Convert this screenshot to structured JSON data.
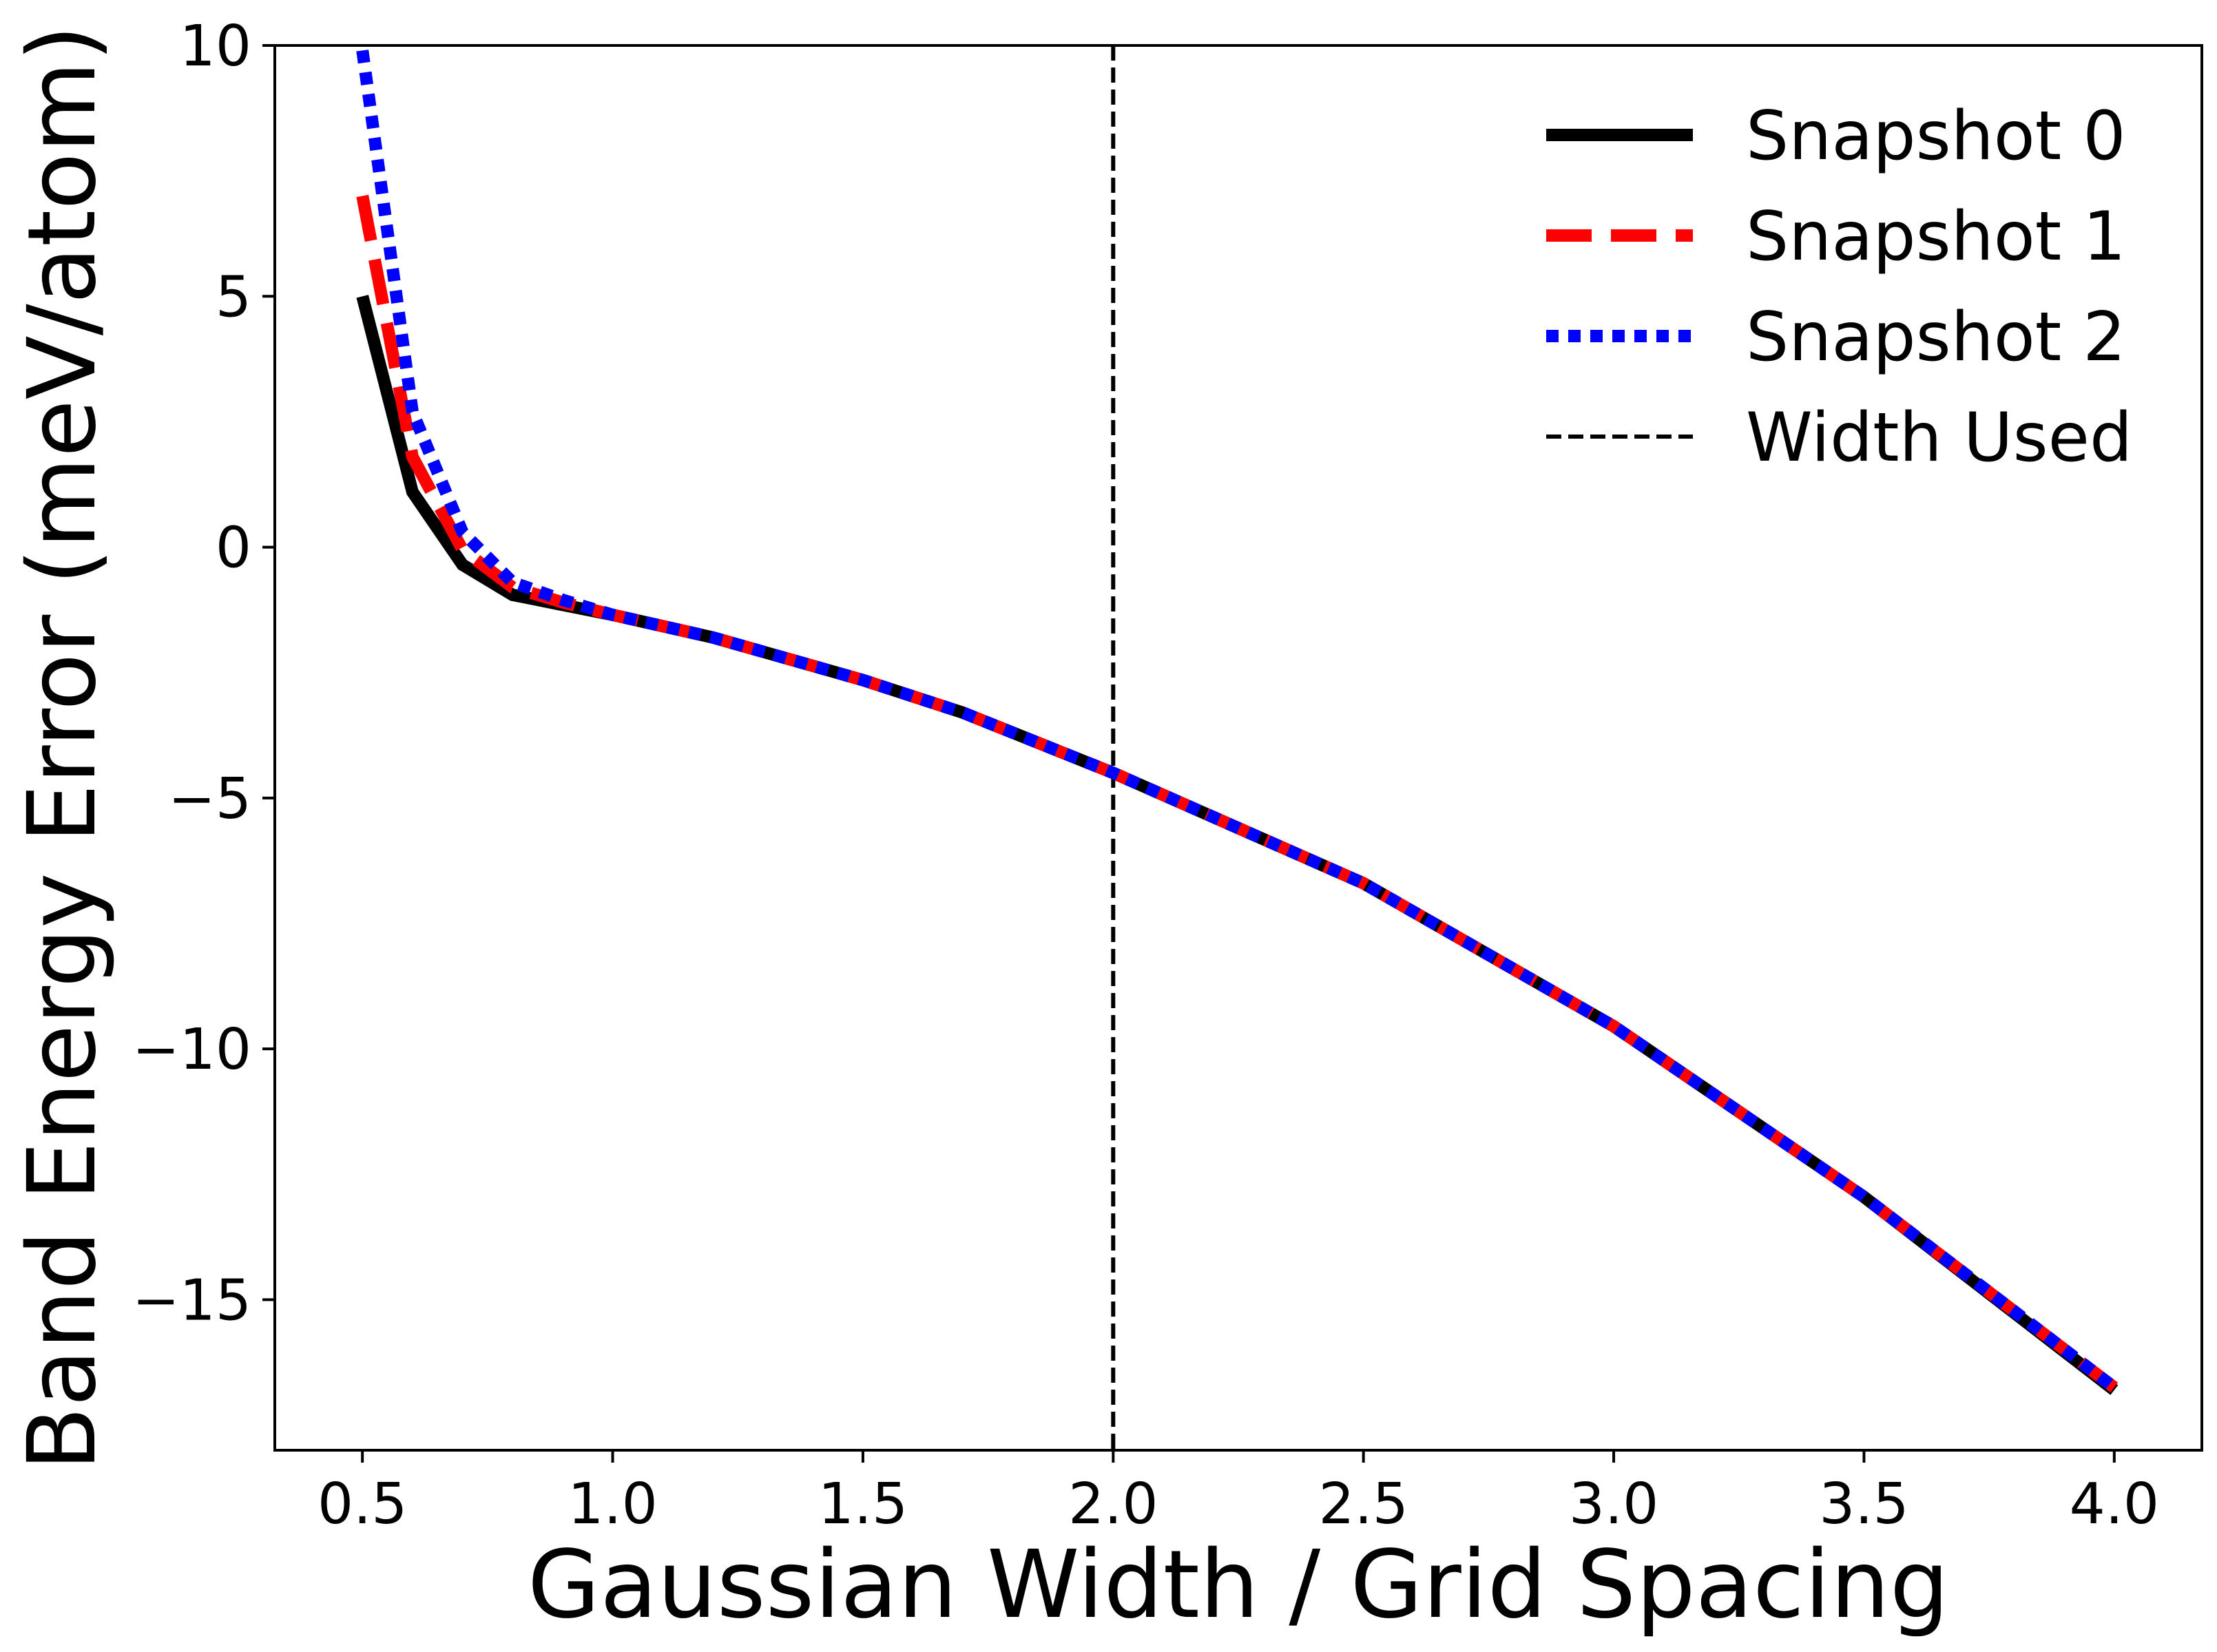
{
  "chart_data": {
    "type": "line",
    "title": "",
    "xlabel": "Gaussian Width / Grid Spacing",
    "ylabel": "Band Energy Error (meV/atom)",
    "xlim": [
      0.325,
      4.175
    ],
    "ylim": [
      -18,
      10
    ],
    "xticks": [
      0.5,
      1.0,
      1.5,
      2.0,
      2.5,
      3.0,
      3.5,
      4.0
    ],
    "xtick_labels": [
      "0.5",
      "1.0",
      "1.5",
      "2.0",
      "2.5",
      "3.0",
      "3.5",
      "4.0"
    ],
    "yticks": [
      10,
      5,
      0,
      -5,
      -10,
      -15
    ],
    "ytick_labels": [
      "10",
      "5",
      "0",
      "−5",
      "−10",
      "−15"
    ],
    "grid": false,
    "legend_position": "top-right",
    "series": [
      {
        "name": "Snapshot 0",
        "color": "#000000",
        "style": "solid",
        "x": [
          0.5,
          0.6,
          0.7,
          0.8,
          0.9,
          1.0,
          1.2,
          1.5,
          1.7,
          2.0,
          2.5,
          3.0,
          3.5,
          4.0
        ],
        "y": [
          5.0,
          1.1,
          -0.35,
          -0.95,
          -1.15,
          -1.35,
          -1.8,
          -2.65,
          -3.3,
          -4.5,
          -6.7,
          -9.55,
          -12.95,
          -16.8
        ]
      },
      {
        "name": "Snapshot 1",
        "color": "#ff0000",
        "style": "dashed",
        "x": [
          0.5,
          0.6,
          0.7,
          0.8,
          0.9,
          1.0,
          1.2,
          1.5,
          1.7,
          2.0,
          2.5,
          3.0,
          3.5,
          4.0
        ],
        "y": [
          7.0,
          1.8,
          -0.05,
          -0.8,
          -1.1,
          -1.35,
          -1.8,
          -2.65,
          -3.3,
          -4.5,
          -6.7,
          -9.55,
          -12.95,
          -16.75
        ]
      },
      {
        "name": "Snapshot 2",
        "color": "#0000ff",
        "style": "dotted",
        "x": [
          0.5,
          0.6,
          0.7,
          0.8,
          0.9,
          1.0,
          1.2,
          1.5,
          1.7,
          2.0,
          2.5,
          3.0,
          3.5,
          4.0
        ],
        "y": [
          9.9,
          2.7,
          0.3,
          -0.7,
          -1.05,
          -1.35,
          -1.8,
          -2.65,
          -3.3,
          -4.5,
          -6.7,
          -9.55,
          -12.95,
          -16.75
        ]
      }
    ],
    "vline": {
      "name": "Width Used",
      "x": 2.0,
      "color": "#000000",
      "style": "dashed"
    }
  }
}
